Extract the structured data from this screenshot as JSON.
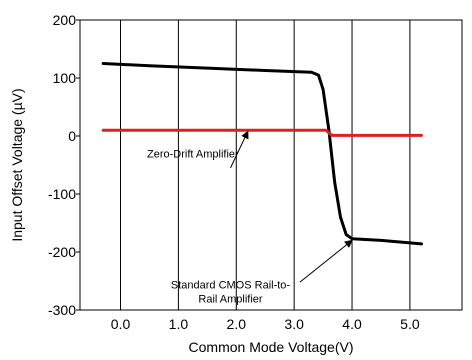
{
  "chart_data": {
    "type": "line",
    "xlabel": "Common Mode Voltage(V)",
    "ylabel": "Input Offset Voltage (µV)",
    "xlim": [
      -0.7,
      5.9
    ],
    "ylim": [
      -300,
      200
    ],
    "x_ticks": [
      0.0,
      1.0,
      2.0,
      3.0,
      4.0,
      5.0
    ],
    "x_tick_labels": [
      "0.0",
      "1.0",
      "2.0",
      "3.0",
      "4.0",
      "5.0"
    ],
    "y_ticks": [
      200,
      100,
      0,
      -100,
      -200,
      -300
    ],
    "y_tick_labels": [
      "200",
      "100",
      "0",
      "-100",
      "-200",
      "-300"
    ],
    "grid": "vertical",
    "series": [
      {
        "color": "#000000",
        "x": [
          -0.3,
          0.5,
          1.5,
          2.5,
          3.3,
          3.42,
          3.5,
          3.6,
          3.7,
          3.8,
          3.9,
          4.0,
          4.5,
          5.2
        ],
        "y": [
          125,
          121,
          117,
          113,
          110,
          105,
          80,
          10,
          -80,
          -140,
          -170,
          -177,
          -180,
          -186
        ]
      },
      {
        "color": "#e02020",
        "x": [
          -0.3,
          0.5,
          1.5,
          2.5,
          3.3,
          3.55,
          3.65,
          3.8,
          4.5,
          5.2
        ],
        "y": [
          10,
          10,
          10,
          10,
          10,
          10,
          1,
          1,
          1,
          1
        ]
      }
    ],
    "annotations": [
      {
        "lines": [
          "Zero-Drift Amplifier"
        ],
        "text_x": 1.25,
        "text_y": -37,
        "arrow_from": [
          1.9,
          -55
        ],
        "arrow_to": [
          2.2,
          8
        ]
      },
      {
        "lines": [
          "Standard CMOS Rail-to-",
          "Rail Amplifier"
        ],
        "text_x": 1.9,
        "text_y": -263,
        "arrow_from": [
          3.1,
          -252
        ],
        "arrow_to": [
          4.0,
          -180
        ]
      }
    ]
  }
}
